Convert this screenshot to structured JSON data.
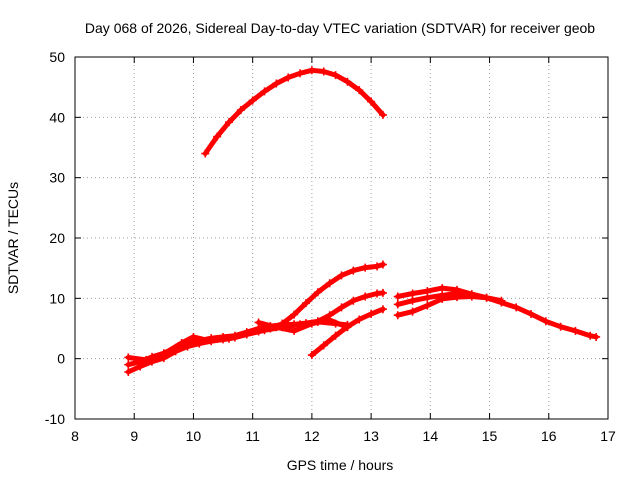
{
  "chart_data": {
    "type": "scatter",
    "title": "Day 068 of 2026, Sidereal Day-to-day VTEC variation (SDTVAR) for receiver geob",
    "xlabel": "GPS time / hours",
    "ylabel": "SDTVAR / TECUs",
    "xlim": [
      8,
      17
    ],
    "ylim": [
      -10,
      50
    ],
    "xticks": [
      8,
      9,
      10,
      11,
      12,
      13,
      14,
      15,
      16,
      17
    ],
    "yticks": [
      -10,
      0,
      10,
      20,
      30,
      40,
      50
    ],
    "grid": true,
    "marker": "+",
    "color": "#ff0000",
    "series": [
      {
        "name": "arc-high",
        "x": [
          10.2,
          10.4,
          10.6,
          10.8,
          11.0,
          11.2,
          11.4,
          11.6,
          11.8,
          12.0,
          12.2,
          12.4,
          12.6,
          12.8,
          13.0,
          13.2
        ],
        "y": [
          34.0,
          36.8,
          39.2,
          41.2,
          42.8,
          44.3,
          45.6,
          46.6,
          47.3,
          47.8,
          47.6,
          47.0,
          45.9,
          44.5,
          42.6,
          40.4
        ]
      },
      {
        "name": "arc-rising-15",
        "x": [
          8.9,
          9.1,
          9.3,
          9.5,
          9.7,
          9.9,
          10.1,
          10.3,
          10.5,
          10.7,
          10.9,
          11.1,
          11.3,
          11.5,
          11.7,
          11.9,
          12.1,
          12.3,
          12.5,
          12.7,
          12.9,
          13.1,
          13.2
        ],
        "y": [
          -2.2,
          -1.3,
          -0.5,
          0.1,
          1.2,
          2.0,
          2.5,
          2.9,
          3.2,
          3.5,
          4.0,
          4.5,
          5.0,
          5.8,
          7.3,
          9.2,
          11.0,
          12.5,
          13.8,
          14.6,
          15.1,
          15.3,
          15.6
        ]
      },
      {
        "name": "arc-rising-11",
        "x": [
          8.9,
          9.1,
          9.3,
          9.5,
          9.7,
          9.9,
          10.1,
          10.3,
          10.5,
          10.7,
          10.9,
          11.1,
          11.3,
          11.5,
          11.7,
          11.9,
          12.1,
          12.3,
          12.5,
          12.7,
          12.9,
          13.1,
          13.2
        ],
        "y": [
          -1.0,
          -0.5,
          0.3,
          0.9,
          1.8,
          2.6,
          3.0,
          3.4,
          3.6,
          3.8,
          4.4,
          5.0,
          5.4,
          5.6,
          5.7,
          5.9,
          6.2,
          7.2,
          8.5,
          9.6,
          10.3,
          10.8,
          10.9
        ]
      },
      {
        "name": "arc-steep",
        "x": [
          12.0,
          12.2,
          12.4,
          12.6,
          12.8,
          13.0,
          13.2
        ],
        "y": [
          0.6,
          2.2,
          3.8,
          5.3,
          6.5,
          7.4,
          8.2
        ]
      },
      {
        "name": "arc-bump",
        "x": [
          8.9,
          9.2,
          9.5,
          9.8,
          10.0,
          10.3,
          10.6,
          10.9,
          11.2,
          11.5,
          11.8,
          12.1,
          12.4,
          12.6
        ],
        "y": [
          0.2,
          -0.2,
          0.8,
          2.6,
          3.6,
          2.9,
          3.3,
          4.0,
          4.7,
          5.2,
          5.7,
          6.1,
          5.8,
          5.6
        ]
      },
      {
        "name": "arc-dip",
        "x": [
          11.1,
          11.4,
          11.7,
          12.0,
          12.3,
          12.6
        ],
        "y": [
          6.0,
          5.2,
          4.6,
          5.8,
          6.4,
          5.2
        ]
      },
      {
        "name": "arc-late-upper",
        "x": [
          13.45,
          13.7,
          13.95,
          14.2,
          14.45,
          14.7,
          14.95,
          15.2,
          15.45,
          15.7,
          15.95,
          16.2,
          16.45,
          16.7,
          16.8
        ],
        "y": [
          10.3,
          10.8,
          11.2,
          11.7,
          11.4,
          10.7,
          10.1,
          9.3,
          8.5,
          7.4,
          6.2,
          5.3,
          4.6,
          3.8,
          3.6
        ]
      },
      {
        "name": "arc-late-lower",
        "x": [
          13.45,
          13.7,
          13.95,
          14.2,
          14.45,
          14.7,
          14.95,
          15.2
        ],
        "y": [
          7.2,
          7.8,
          8.8,
          9.9,
          10.2,
          10.3,
          10.1,
          9.6
        ]
      },
      {
        "name": "arc-late-mid",
        "x": [
          13.45,
          13.7,
          13.95,
          14.2,
          14.45,
          14.7
        ],
        "y": [
          9.0,
          9.6,
          10.1,
          10.5,
          10.8,
          10.5
        ]
      }
    ]
  }
}
